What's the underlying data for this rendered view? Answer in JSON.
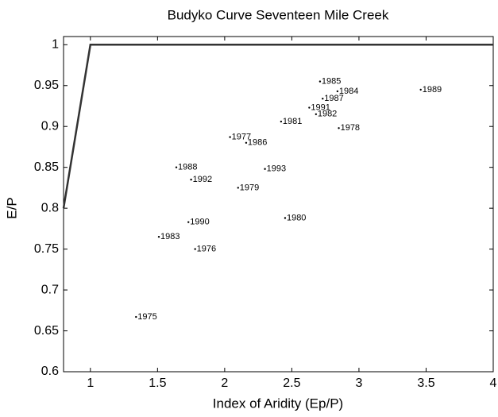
{
  "chart_data": {
    "type": "scatter",
    "title": "Budyko Curve Seventeen Mile Creek",
    "x_label": "Index of Aridity (Ep/P)",
    "y_label": "E/P",
    "xlim": [
      0.8,
      4
    ],
    "ylim": [
      0.6,
      1.01
    ],
    "xticks": [
      1,
      1.5,
      2,
      2.5,
      3,
      3.5,
      4
    ],
    "yticks": [
      0.6,
      0.65,
      0.7,
      0.75,
      0.8,
      0.85,
      0.9,
      0.95,
      1
    ],
    "curve": {
      "x": [
        0.8,
        1,
        4
      ],
      "y": [
        0.8,
        1,
        1
      ],
      "color": "#333333"
    },
    "points": {
      "color": "#000000",
      "labels": [
        "1975",
        "1976",
        "1983",
        "1990",
        "1979",
        "1992",
        "1988",
        "1993",
        "1980",
        "1977",
        "1986",
        "1981",
        "1991",
        "1982",
        "1978",
        "1987",
        "1984",
        "1985",
        "1989"
      ],
      "x": [
        1.34,
        1.78,
        1.51,
        1.73,
        2.1,
        1.75,
        1.64,
        2.3,
        2.45,
        2.04,
        2.16,
        2.42,
        2.63,
        2.68,
        2.85,
        2.73,
        2.84,
        2.71,
        3.46
      ],
      "y": [
        0.667,
        0.75,
        0.765,
        0.783,
        0.825,
        0.835,
        0.85,
        0.848,
        0.788,
        0.887,
        0.88,
        0.906,
        0.923,
        0.915,
        0.898,
        0.934,
        0.943,
        0.955,
        0.945
      ]
    }
  }
}
